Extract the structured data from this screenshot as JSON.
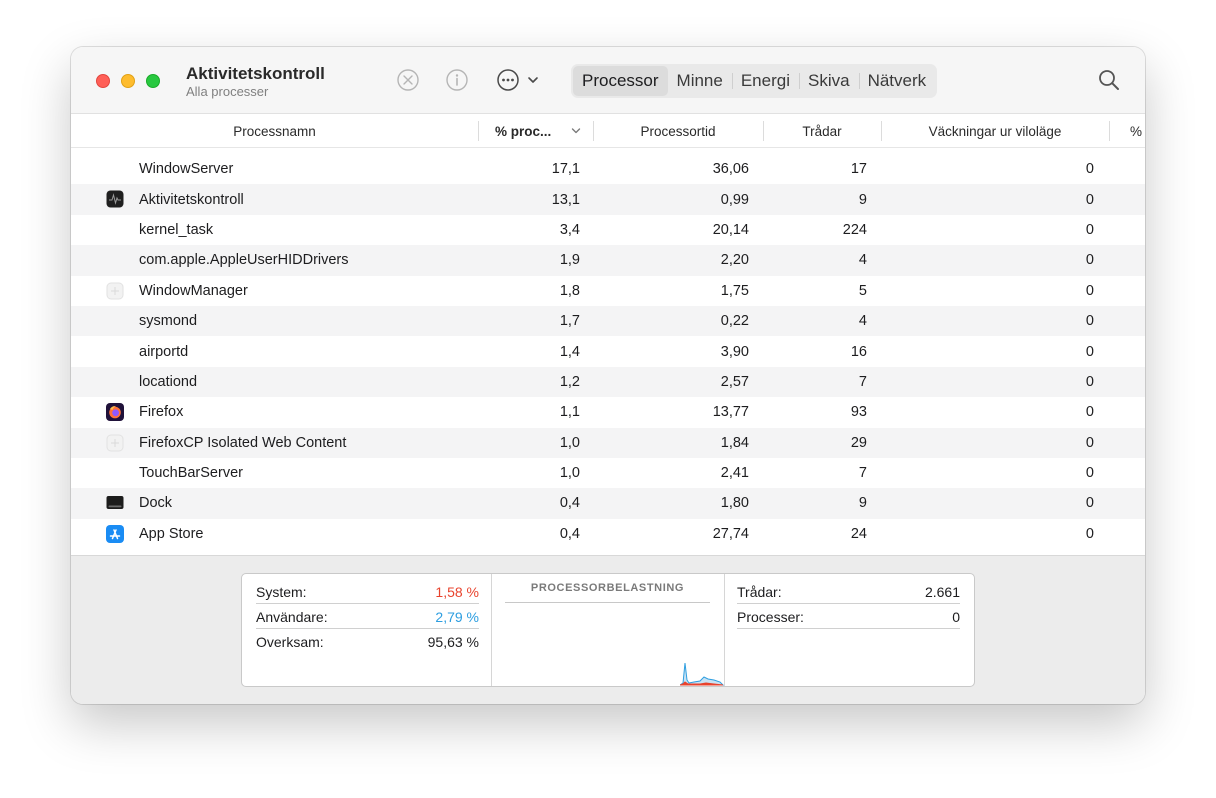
{
  "window": {
    "title": "Aktivitetskontroll",
    "subtitle": "Alla processer"
  },
  "toolbar": {
    "icons": [
      "stop-process-icon",
      "info-icon",
      "more-options-icon",
      "chevron-down-icon"
    ],
    "tabs": [
      {
        "label": "Processor",
        "active": true
      },
      {
        "label": "Minne",
        "active": false
      },
      {
        "label": "Energi",
        "active": false
      },
      {
        "label": "Skiva",
        "active": false
      },
      {
        "label": "Nätverk",
        "active": false
      }
    ],
    "search_icon": "search-icon"
  },
  "columns": {
    "name": "Processnamn",
    "cpu": "% proc...",
    "time": "Processortid",
    "threads": "Trådar",
    "wakeups": "Väckningar ur viloläge",
    "extra": "%"
  },
  "processes": [
    {
      "name": "WindowServer",
      "cpu": "17,1",
      "time": "36,06",
      "threads": "17",
      "wakeups": "0",
      "icon": ""
    },
    {
      "name": "Aktivitetskontroll",
      "cpu": "13,1",
      "time": "0,99",
      "threads": "9",
      "wakeups": "0",
      "icon": "activity-monitor-icon"
    },
    {
      "name": "kernel_task",
      "cpu": "3,4",
      "time": "20,14",
      "threads": "224",
      "wakeups": "0",
      "icon": ""
    },
    {
      "name": "com.apple.AppleUserHIDDrivers",
      "cpu": "1,9",
      "time": "2,20",
      "threads": "4",
      "wakeups": "0",
      "icon": ""
    },
    {
      "name": "WindowManager",
      "cpu": "1,8",
      "time": "1,75",
      "threads": "5",
      "wakeups": "0",
      "icon": "generic-app-icon"
    },
    {
      "name": "sysmond",
      "cpu": "1,7",
      "time": "0,22",
      "threads": "4",
      "wakeups": "0",
      "icon": ""
    },
    {
      "name": "airportd",
      "cpu": "1,4",
      "time": "3,90",
      "threads": "16",
      "wakeups": "0",
      "icon": ""
    },
    {
      "name": "locationd",
      "cpu": "1,2",
      "time": "2,57",
      "threads": "7",
      "wakeups": "0",
      "icon": ""
    },
    {
      "name": "Firefox",
      "cpu": "1,1",
      "time": "13,77",
      "threads": "93",
      "wakeups": "0",
      "icon": "firefox-icon"
    },
    {
      "name": "FirefoxCP Isolated Web Content",
      "cpu": "1,0",
      "time": "1,84",
      "threads": "29",
      "wakeups": "0",
      "icon": "generic-app-icon"
    },
    {
      "name": "TouchBarServer",
      "cpu": "1,0",
      "time": "2,41",
      "threads": "7",
      "wakeups": "0",
      "icon": ""
    },
    {
      "name": "Dock",
      "cpu": "0,4",
      "time": "1,80",
      "threads": "9",
      "wakeups": "0",
      "icon": "dock-icon"
    },
    {
      "name": "App Store",
      "cpu": "0,4",
      "time": "27,74",
      "threads": "24",
      "wakeups": "0",
      "icon": "app-store-icon"
    }
  ],
  "summary": {
    "system_label": "System:",
    "system_value": "1,58 %",
    "user_label": "Användare:",
    "user_value": "2,79 %",
    "idle_label": "Overksam:",
    "idle_value": "95,63 %",
    "graph_title": "PROCESSORBELASTNING",
    "threads_label": "Trådar:",
    "threads_value": "2.661",
    "processes_label": "Processer:",
    "processes_value": "0"
  },
  "colors": {
    "system": "#e8432d",
    "user": "#2d9ee0",
    "traffic_close": "#ff5f57",
    "traffic_min": "#febc2e",
    "traffic_max": "#28c840"
  }
}
